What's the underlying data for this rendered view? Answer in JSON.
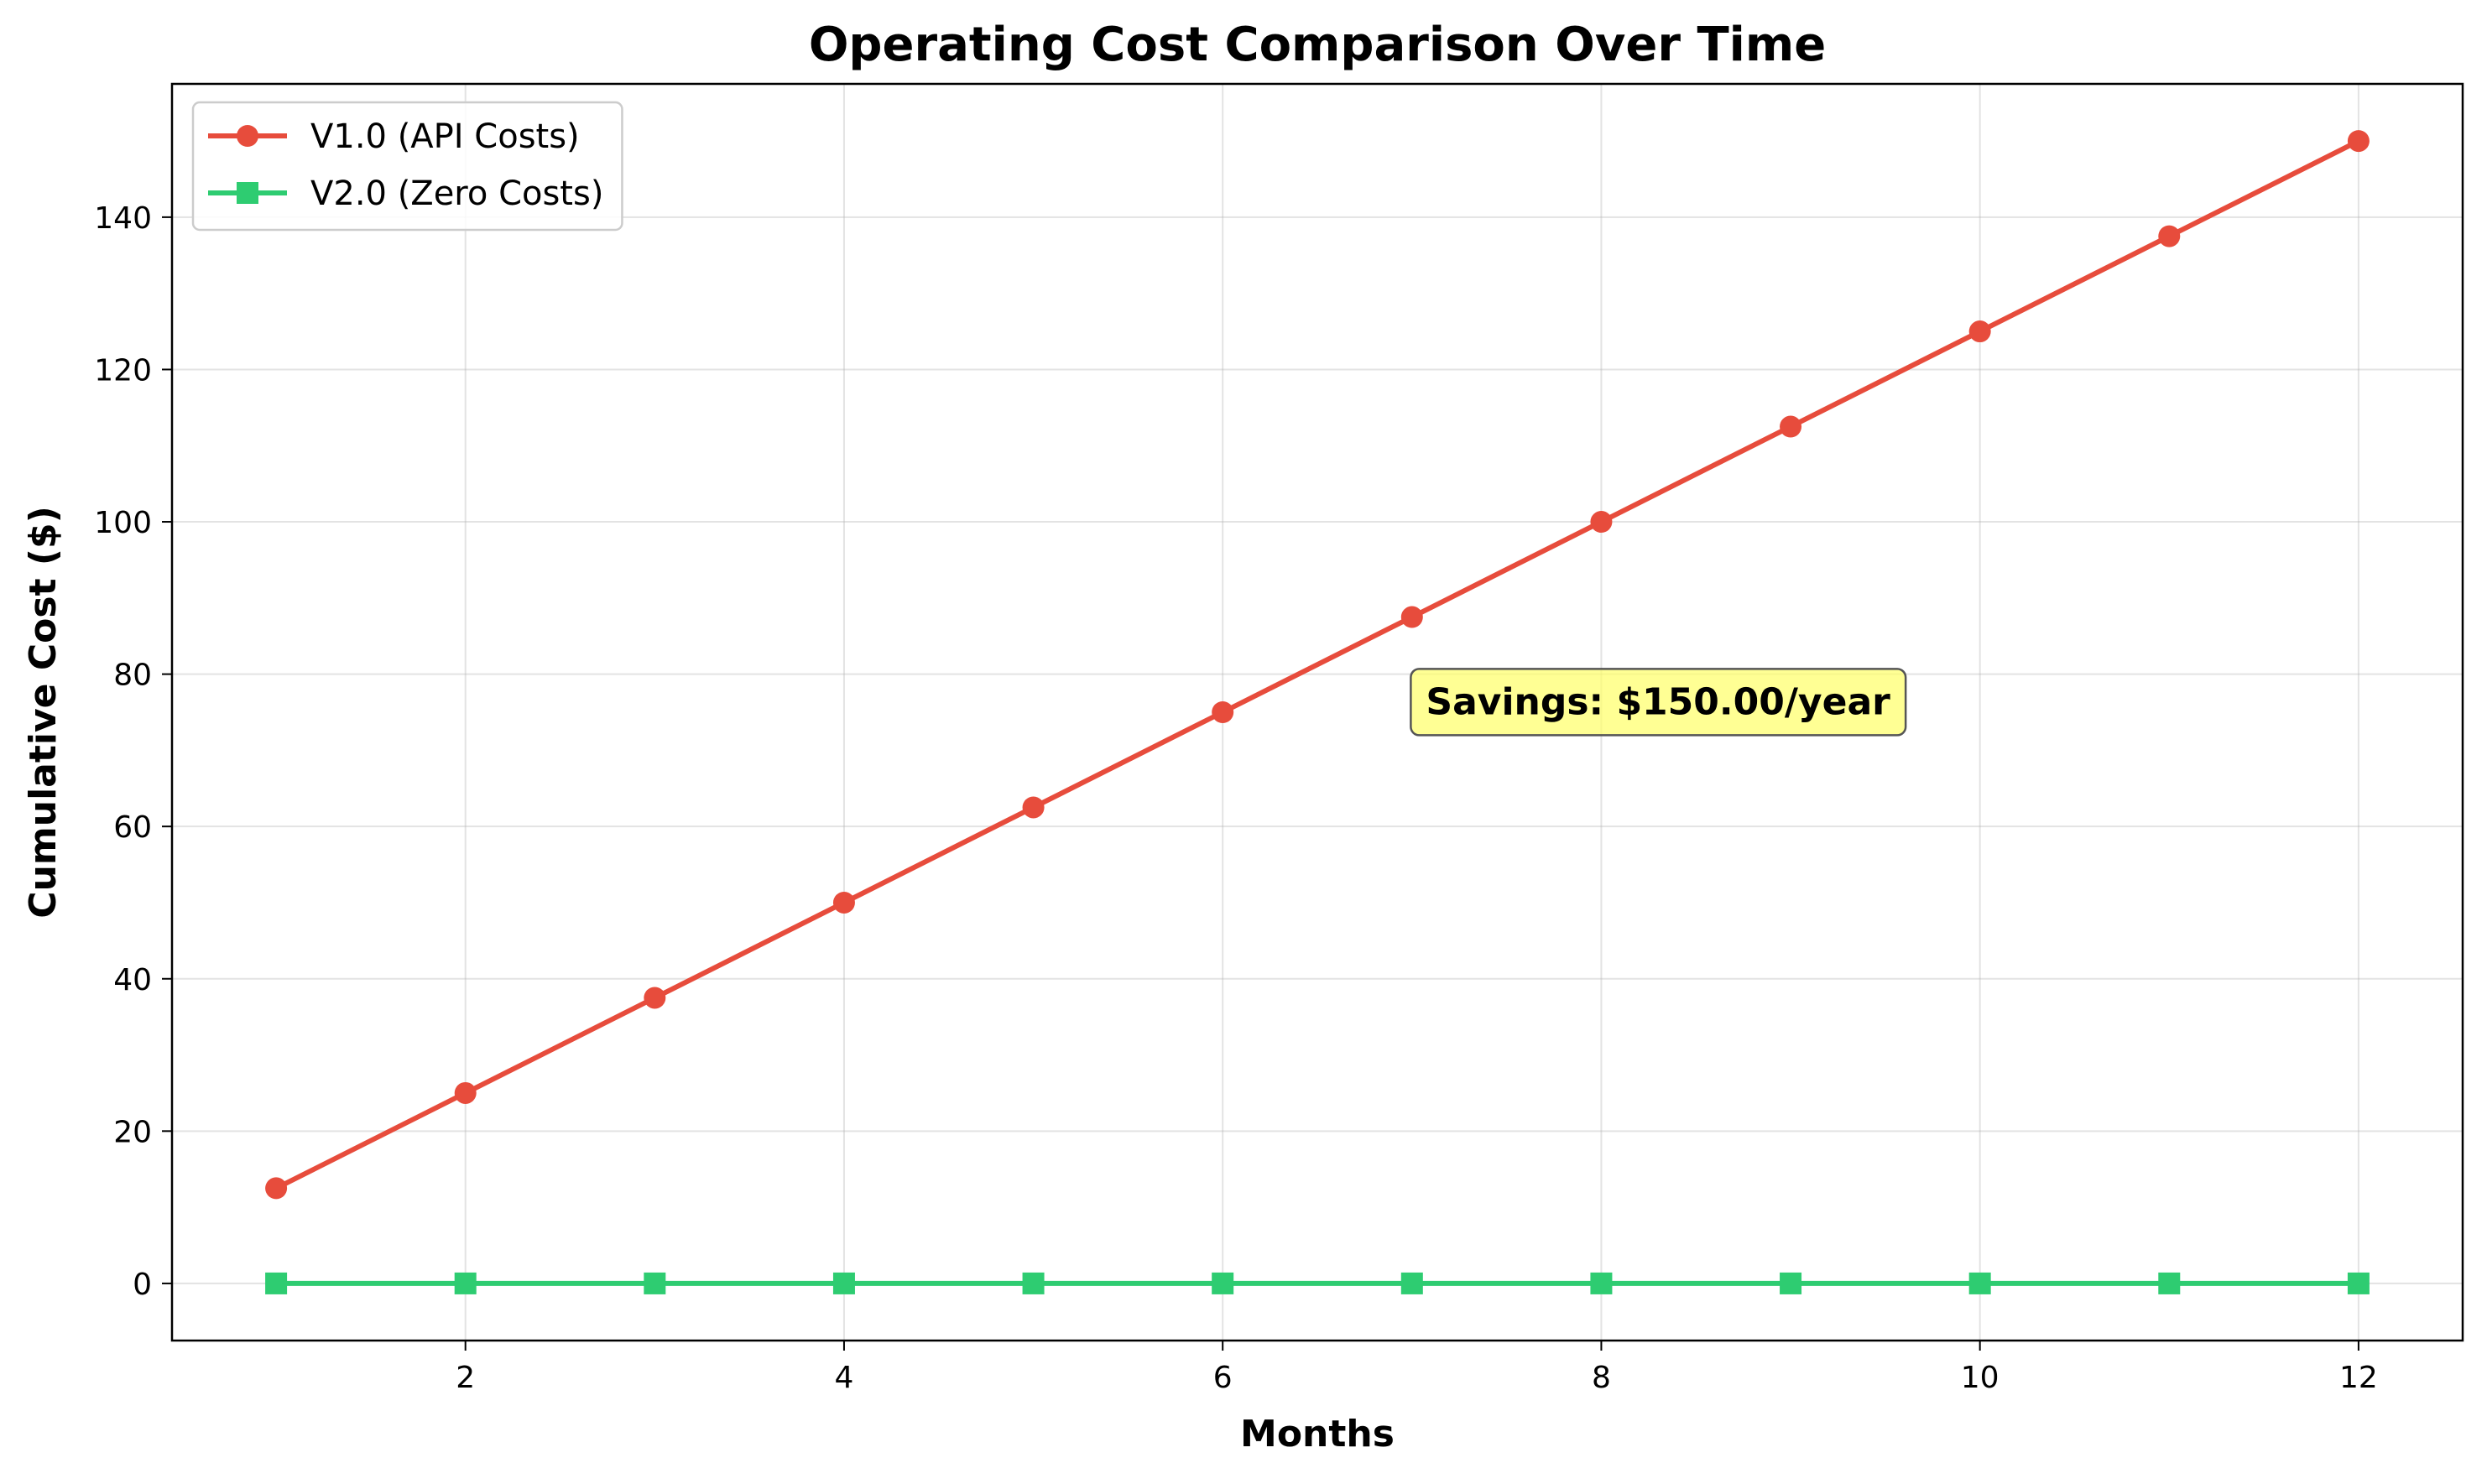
{
  "chart_data": {
    "type": "line",
    "title": "Operating Cost Comparison Over Time",
    "xlabel": "Months",
    "ylabel": "Cumulative Cost ($)",
    "xlim": [
      0.45,
      12.55
    ],
    "ylim": [
      -7.5,
      157.5
    ],
    "xticks": [
      2,
      4,
      6,
      8,
      10,
      12
    ],
    "yticks": [
      0,
      20,
      40,
      60,
      80,
      100,
      120,
      140
    ],
    "grid": true,
    "legend_position": "top-left",
    "x": [
      1,
      2,
      3,
      4,
      5,
      6,
      7,
      8,
      9,
      10,
      11,
      12
    ],
    "series": [
      {
        "name": "V1.0 (API Costs)",
        "color": "#e74c3c",
        "marker": "circle",
        "values": [
          12.5,
          25,
          37.5,
          50,
          62.5,
          75,
          87.5,
          100,
          112.5,
          125,
          137.5,
          150
        ]
      },
      {
        "name": "V2.0 (Zero Costs)",
        "color": "#2ecc71",
        "marker": "square",
        "values": [
          0,
          0,
          0,
          0,
          0,
          0,
          0,
          0,
          0,
          0,
          0,
          0
        ]
      }
    ],
    "annotations": [
      {
        "text": "Savings: $150.00/year",
        "x": 8.3,
        "y": 76.5,
        "background": "#ffff66"
      }
    ]
  }
}
